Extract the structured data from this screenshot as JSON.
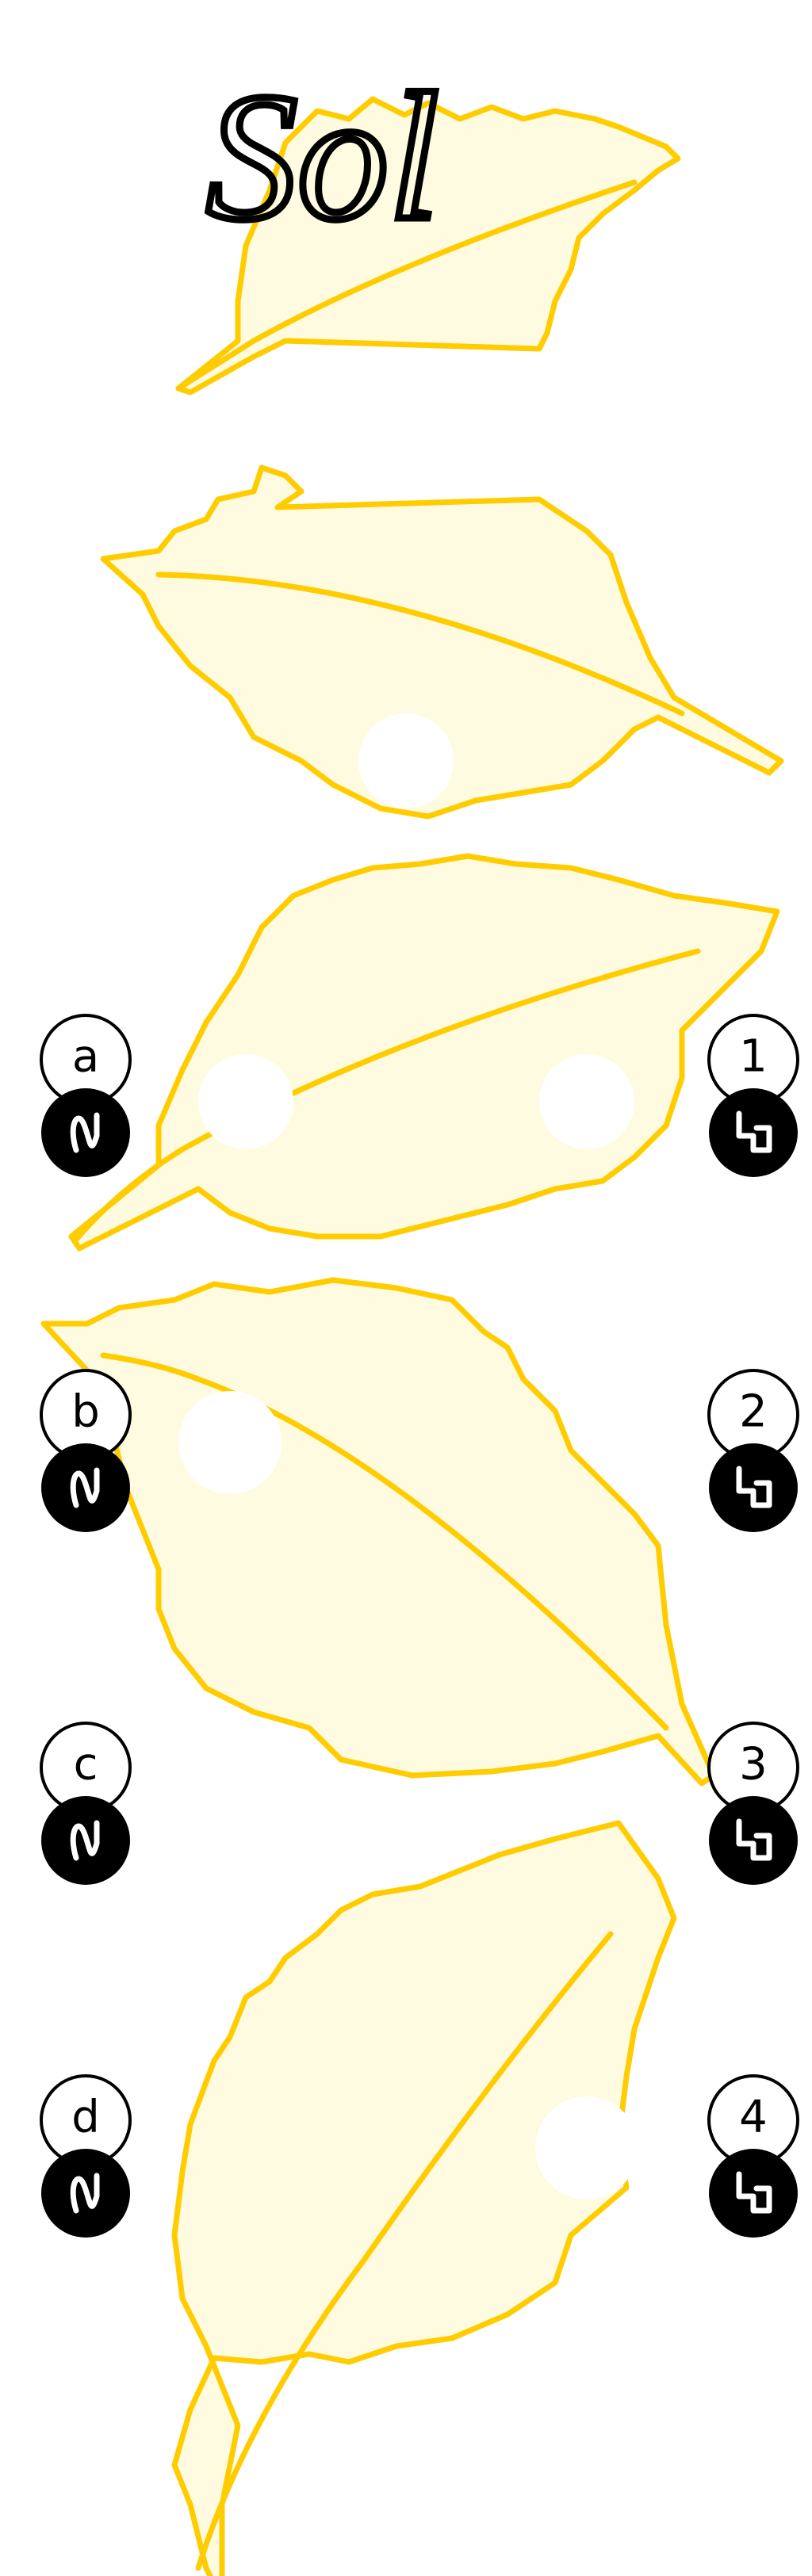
{
  "header": {
    "title": "Sol"
  },
  "inputs": [
    {
      "label": "a"
    },
    {
      "label": "b"
    },
    {
      "label": "c"
    },
    {
      "label": "d"
    }
  ],
  "outputs": [
    {
      "label": "1"
    },
    {
      "label": "2"
    },
    {
      "label": "3"
    },
    {
      "label": "4"
    }
  ]
}
